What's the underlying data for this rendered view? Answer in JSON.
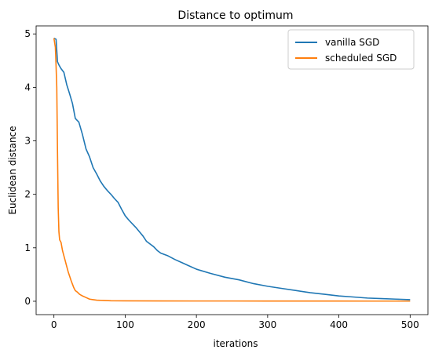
{
  "chart_data": {
    "type": "line",
    "title": "Distance to optimum",
    "xlabel": "iterations",
    "ylabel": "Euclidean distance",
    "xlim": [
      -25,
      525
    ],
    "ylim": [
      -0.25,
      5.15
    ],
    "xticks": [
      0,
      100,
      200,
      300,
      400,
      500
    ],
    "yticks": [
      0,
      1,
      2,
      3,
      4,
      5
    ],
    "grid": false,
    "legend_position": "top-right",
    "series": [
      {
        "name": "vanilla SGD",
        "color": "#1f77b4",
        "x": [
          0,
          3,
          5,
          7,
          10,
          14,
          18,
          22,
          26,
          30,
          35,
          40,
          45,
          50,
          55,
          60,
          65,
          70,
          75,
          80,
          85,
          90,
          95,
          100,
          105,
          110,
          115,
          120,
          125,
          130,
          135,
          140,
          145,
          150,
          160,
          170,
          180,
          190,
          200,
          220,
          240,
          260,
          280,
          300,
          320,
          340,
          360,
          380,
          400,
          420,
          440,
          460,
          480,
          500
        ],
        "y": [
          4.92,
          4.9,
          4.48,
          4.42,
          4.35,
          4.28,
          4.05,
          3.88,
          3.7,
          3.42,
          3.35,
          3.12,
          2.85,
          2.7,
          2.5,
          2.38,
          2.25,
          2.15,
          2.07,
          2.0,
          1.92,
          1.85,
          1.72,
          1.6,
          1.52,
          1.45,
          1.38,
          1.3,
          1.22,
          1.12,
          1.07,
          1.02,
          0.95,
          0.9,
          0.85,
          0.78,
          0.72,
          0.66,
          0.6,
          0.52,
          0.45,
          0.4,
          0.33,
          0.28,
          0.24,
          0.2,
          0.16,
          0.13,
          0.1,
          0.08,
          0.06,
          0.05,
          0.04,
          0.03
        ]
      },
      {
        "name": "scheduled SGD",
        "color": "#ff7f0e",
        "x": [
          0,
          2,
          3,
          4,
          5,
          6,
          7,
          8,
          10,
          12,
          14,
          16,
          18,
          20,
          22,
          24,
          26,
          28,
          30,
          33,
          36,
          40,
          45,
          50,
          55,
          60,
          70,
          80,
          100,
          150,
          200,
          250,
          300,
          350,
          400,
          450,
          500
        ],
        "y": [
          4.92,
          4.75,
          4.4,
          4.0,
          2.8,
          1.75,
          1.3,
          1.15,
          1.1,
          0.95,
          0.85,
          0.75,
          0.65,
          0.55,
          0.47,
          0.39,
          0.32,
          0.25,
          0.2,
          0.17,
          0.13,
          0.1,
          0.07,
          0.04,
          0.03,
          0.02,
          0.015,
          0.01,
          0.008,
          0.006,
          0.005,
          0.005,
          0.004,
          0.004,
          0.004,
          0.003,
          0.003
        ]
      }
    ]
  }
}
